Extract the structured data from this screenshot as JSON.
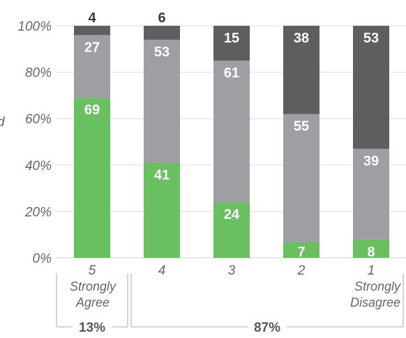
{
  "chart_data": {
    "type": "bar",
    "stacked": true,
    "percent_stacked": true,
    "ylim": [
      0,
      100
    ],
    "y_ticks": [
      "0%",
      "20%",
      "40%",
      "60%",
      "80%",
      "100%"
    ],
    "grid": true,
    "categories": [
      "5",
      "4",
      "3",
      "2",
      "1"
    ],
    "category_sublabels": [
      [
        "Strongly",
        "Agree"
      ],
      [],
      [],
      [],
      [
        "Strongly",
        "Disagree"
      ]
    ],
    "series": [
      {
        "values": [
          69,
          41,
          24,
          7,
          8
        ],
        "color": "#6abf60",
        "label_color": "#ffffff"
      },
      {
        "values": [
          27,
          53,
          61,
          55,
          39
        ],
        "color": "#9e9fa3",
        "label_color": "#ffffff"
      },
      {
        "values": [
          4,
          6,
          15,
          38,
          53
        ],
        "color": "#5e5e60",
        "label_color": "#ffffff"
      }
    ],
    "data_labels": [
      [
        "69",
        "27",
        "4"
      ],
      [
        "41",
        "53",
        "6"
      ],
      [
        "24",
        "61",
        "15"
      ],
      [
        "7",
        "55",
        "38"
      ],
      [
        "8",
        "39",
        "53"
      ]
    ],
    "groups": [
      {
        "label": "13%",
        "from": 0,
        "to": 0
      },
      {
        "label": "87%",
        "from": 1,
        "to": 4
      }
    ],
    "left_edge_text": "d"
  }
}
